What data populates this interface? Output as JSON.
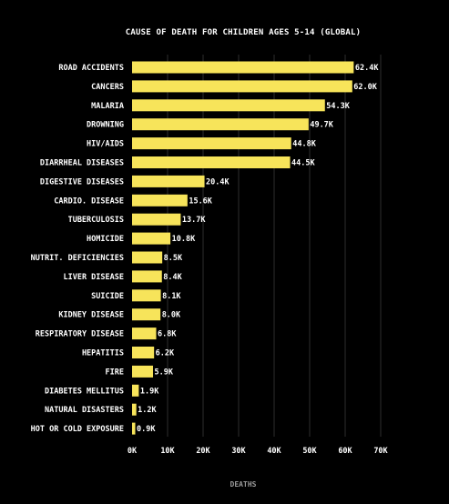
{
  "chart_data": {
    "type": "bar",
    "orientation": "horizontal",
    "title": "CAUSE OF DEATH FOR CHILDREN AGES 5-14 (GLOBAL)",
    "xlabel": "DEATHS",
    "ylabel": "",
    "xlim": [
      0,
      70000
    ],
    "x_ticks": [
      0,
      10000,
      20000,
      30000,
      40000,
      50000,
      60000,
      70000
    ],
    "x_tick_labels": [
      "0K",
      "10K",
      "20K",
      "30K",
      "40K",
      "50K",
      "60K",
      "70K"
    ],
    "grid": "vertical",
    "categories": [
      "ROAD ACCIDENTS",
      "CANCERS",
      "MALARIA",
      "DROWNING",
      "HIV/AIDS",
      "DIARRHEAL DISEASES",
      "DIGESTIVE DISEASES",
      "CARDIO. DISEASE",
      "TUBERCULOSIS",
      "HOMICIDE",
      "NUTRIT. DEFICIENCIES",
      "LIVER DISEASE",
      "SUICIDE",
      "KIDNEY DISEASE",
      "RESPIRATORY DISEASE",
      "HEPATITIS",
      "FIRE",
      "DIABETES MELLITUS",
      "NATURAL DISASTERS",
      "HOT OR COLD EXPOSURE"
    ],
    "values": [
      62400,
      62000,
      54300,
      49700,
      44800,
      44500,
      20400,
      15600,
      13700,
      10800,
      8500,
      8400,
      8100,
      8000,
      6800,
      6200,
      5900,
      1900,
      1200,
      900
    ],
    "value_labels": [
      "62.4K",
      "62.0K",
      "54.3K",
      "49.7K",
      "44.8K",
      "44.5K",
      "20.4K",
      "15.6K",
      "13.7K",
      "10.8K",
      "8.5K",
      "8.4K",
      "8.1K",
      "8.0K",
      "6.8K",
      "6.2K",
      "5.9K",
      "1.9K",
      "1.2K",
      "0.9K"
    ],
    "colors": {
      "bar": "#f7e45a",
      "background": "#000000",
      "grid": "#3a3a3a",
      "text": "#ffffff",
      "axis_title": "#9a9a9a"
    }
  }
}
